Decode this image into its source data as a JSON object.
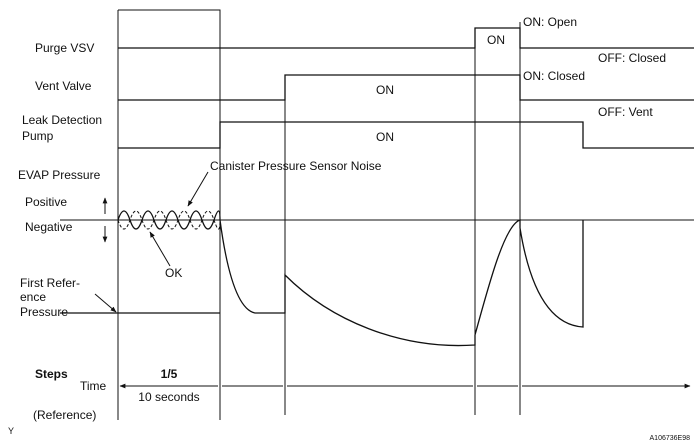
{
  "signals": {
    "purge_vsv": {
      "label": "Purge VSV",
      "on": "ON",
      "on_state": "ON: Open",
      "off_state": "OFF: Closed"
    },
    "vent_valve": {
      "label": "Vent Valve",
      "on": "ON",
      "on_state": "ON: Closed",
      "off_state": "OFF: Vent"
    },
    "leak_pump": {
      "label": [
        "Leak Detection",
        "Pump"
      ],
      "on": "ON"
    },
    "evap": {
      "label": "EVAP Pressure",
      "positive": "Positive",
      "negative": "Negative",
      "first_reference": [
        "First Refer-",
        "ence",
        "Pressure"
      ]
    }
  },
  "annotations": {
    "noise": "Canister Pressure Sensor Noise",
    "ok": "OK"
  },
  "footer": {
    "steps": "Steps",
    "time": "Time",
    "step_label": "1/5",
    "duration": "10 seconds",
    "reference": "(Reference)",
    "corner": "Y",
    "figure_id": "A106736E98"
  }
}
